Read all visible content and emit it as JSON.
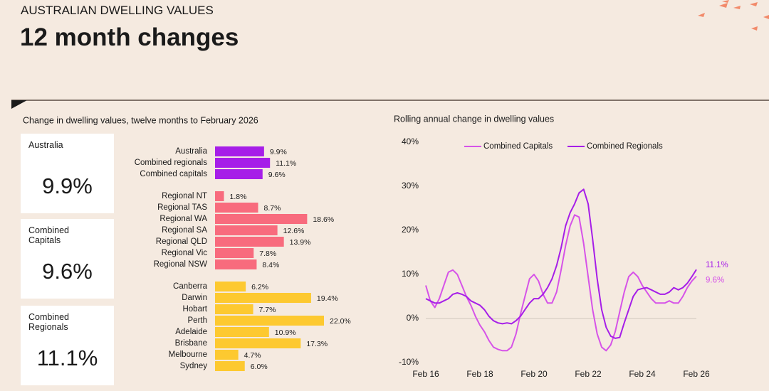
{
  "header": {
    "kicker": "AUSTRALIAN DWELLING VALUES",
    "title": "12 month changes"
  },
  "cards": [
    {
      "label": "Australia",
      "value": "9.9%"
    },
    {
      "label": "Combined Capitals",
      "value": "9.6%"
    },
    {
      "label": "Combined Regionals",
      "value": "11.1%"
    }
  ],
  "chart_data": [
    {
      "type": "hbar",
      "title": "Change in dwelling values, twelve months to February 2026",
      "categories": [
        "Australia",
        "Combined regionals",
        "Combined capitals",
        "Regional NT",
        "Regional TAS",
        "Regional WA",
        "Regional SA",
        "Regional QLD",
        "Regional Vic",
        "Regional NSW",
        "Canberra",
        "Darwin",
        "Hobart",
        "Perth",
        "Adelaide",
        "Brisbane",
        "Melbourne",
        "Sydney"
      ],
      "values": [
        9.9,
        11.1,
        9.6,
        1.8,
        8.7,
        18.6,
        12.6,
        13.9,
        7.8,
        8.4,
        6.2,
        19.4,
        7.7,
        22.0,
        10.9,
        17.3,
        4.7,
        6.0
      ],
      "value_labels": [
        "9.9%",
        "11.1%",
        "9.6%",
        "1.8%",
        "8.7%",
        "18.6%",
        "12.6%",
        "13.9%",
        "7.8%",
        "8.4%",
        "6.2%",
        "19.4%",
        "7.7%",
        "22.0%",
        "10.9%",
        "17.3%",
        "4.7%",
        "6.0%"
      ],
      "colors": [
        "#a61ee8",
        "#a61ee8",
        "#a61ee8",
        "#f86b7d",
        "#f86b7d",
        "#f86b7d",
        "#f86b7d",
        "#f86b7d",
        "#f86b7d",
        "#f86b7d",
        "#fdc930",
        "#fdc930",
        "#fdc930",
        "#fdc930",
        "#fdc930",
        "#fdc930",
        "#fdc930",
        "#fdc930"
      ]
    },
    {
      "type": "line",
      "title": "Rolling annual change in dwelling values",
      "legend": "top",
      "categories": [
        "Feb 16",
        null,
        null,
        null,
        null,
        null,
        null,
        null,
        null,
        null,
        null,
        null,
        "Feb 18",
        null,
        null,
        null,
        null,
        null,
        null,
        null,
        null,
        null,
        null,
        null,
        "Feb 20",
        null,
        null,
        null,
        null,
        null,
        null,
        null,
        null,
        null,
        null,
        null,
        "Feb 22",
        null,
        null,
        null,
        null,
        null,
        null,
        null,
        null,
        null,
        null,
        null,
        "Feb 24",
        null,
        null,
        null,
        null,
        null,
        null,
        null,
        null,
        null,
        null,
        null,
        "Feb 26"
      ],
      "ylim": [
        -10,
        40
      ],
      "yticks": [
        {
          "value": -10,
          "label": "-10%"
        },
        {
          "value": 0,
          "label": "0%"
        },
        {
          "value": 10,
          "label": "10%"
        },
        {
          "value": 20,
          "label": "20%"
        },
        {
          "value": 30,
          "label": "30%"
        },
        {
          "value": 40,
          "label": "40%"
        }
      ],
      "series": [
        {
          "name": "Combined Capitals",
          "color": "#d653e8",
          "last_label": "9.6%",
          "values": [
            7.5,
            4,
            2.5,
            4.5,
            7.5,
            10.5,
            11,
            10,
            7.5,
            5,
            3,
            0.5,
            -1.5,
            -3,
            -5,
            -6.5,
            -7,
            -7.3,
            -7.3,
            -6.5,
            -3.5,
            1,
            5,
            9,
            10,
            8.5,
            5.5,
            3.5,
            3.5,
            6,
            11,
            16.5,
            21,
            23.5,
            23,
            17,
            9.5,
            2,
            -3.5,
            -6.5,
            -7.3,
            -6,
            -3,
            1.5,
            6,
            9.5,
            10.5,
            9.5,
            7.5,
            6,
            4.5,
            3.5,
            3.5,
            3.5,
            4,
            3.5,
            3.5,
            5,
            7,
            8.5,
            9.6
          ]
        },
        {
          "name": "Combined Regionals",
          "color": "#a61ee8",
          "last_label": "11.1%",
          "values": [
            4.5,
            4,
            3.5,
            3.5,
            4,
            4.5,
            5.5,
            5.8,
            5.5,
            5,
            4,
            3.5,
            3,
            2,
            0.5,
            -0.5,
            -1,
            -1.2,
            -1,
            -1.2,
            -0.5,
            0.5,
            2,
            3.5,
            4.5,
            4.5,
            5.5,
            7,
            9,
            12,
            16,
            21,
            24,
            26,
            28.5,
            29.3,
            26,
            18,
            9,
            2,
            -2,
            -4,
            -4.5,
            -4.3,
            -1,
            2,
            5,
            6.5,
            6.8,
            7,
            6.5,
            6,
            5.5,
            5.5,
            6,
            7,
            6.5,
            7,
            8,
            9.5,
            11.1
          ]
        }
      ]
    }
  ]
}
